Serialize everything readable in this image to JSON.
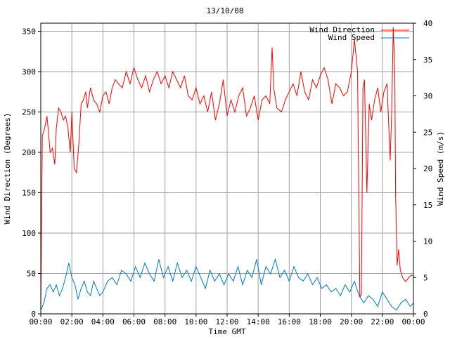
{
  "chart_data": {
    "type": "line",
    "title": "13/10/08",
    "xlabel": "Time GMT",
    "ylabel_left": "Wind Direction (Degrees)",
    "ylabel_right": "Wind Speed (m/s)",
    "grid": true,
    "legend_position": "top-right",
    "x_ticks": [
      "00:00",
      "02:00",
      "04:00",
      "06:00",
      "08:00",
      "10:00",
      "12:00",
      "14:00",
      "16:00",
      "18:00",
      "20:00",
      "22:00",
      "00:00"
    ],
    "x_range_hours": [
      0,
      24
    ],
    "y_left": {
      "range": [
        0,
        360
      ],
      "ticks": [
        0,
        50,
        100,
        150,
        200,
        250,
        300,
        350
      ]
    },
    "y_right": {
      "range": [
        0,
        40
      ],
      "ticks": [
        0,
        5,
        10,
        15,
        20,
        25,
        30,
        35,
        40
      ]
    },
    "series": [
      {
        "name": "Wind Direction",
        "axis": "left",
        "color": "#ff0000",
        "x_hours": [
          0,
          0.1,
          0.25,
          0.4,
          0.5,
          0.6,
          0.75,
          0.9,
          1.0,
          1.15,
          1.3,
          1.45,
          1.6,
          1.75,
          1.9,
          2.0,
          2.15,
          2.3,
          2.45,
          2.6,
          2.75,
          2.9,
          3.0,
          3.2,
          3.4,
          3.6,
          3.8,
          4.0,
          4.2,
          4.4,
          4.6,
          4.8,
          5.0,
          5.25,
          5.5,
          5.75,
          6.0,
          6.25,
          6.5,
          6.75,
          7.0,
          7.25,
          7.5,
          7.75,
          8.0,
          8.25,
          8.5,
          8.75,
          9.0,
          9.25,
          9.5,
          9.75,
          10.0,
          10.25,
          10.5,
          10.75,
          11.0,
          11.25,
          11.5,
          11.75,
          12.0,
          12.25,
          12.5,
          12.75,
          13.0,
          13.25,
          13.5,
          13.75,
          14.0,
          14.25,
          14.5,
          14.75,
          14.9,
          15.0,
          15.2,
          15.5,
          15.75,
          16.0,
          16.25,
          16.5,
          16.75,
          17.0,
          17.25,
          17.5,
          17.75,
          18.0,
          18.25,
          18.5,
          18.75,
          19.0,
          19.25,
          19.5,
          19.75,
          20.0,
          20.2,
          20.4,
          20.55,
          20.65,
          20.75,
          20.85,
          21.0,
          21.15,
          21.3,
          21.5,
          21.7,
          21.9,
          22.1,
          22.3,
          22.5,
          22.6,
          22.7,
          22.8,
          22.85,
          22.95,
          23.05,
          23.15,
          23.3,
          23.5,
          23.7,
          23.85,
          24.0
        ],
        "values": [
          2,
          220,
          230,
          245,
          225,
          200,
          205,
          185,
          230,
          255,
          250,
          240,
          245,
          230,
          200,
          250,
          180,
          175,
          210,
          260,
          265,
          275,
          255,
          280,
          265,
          260,
          250,
          270,
          275,
          260,
          280,
          290,
          285,
          280,
          300,
          285,
          305,
          290,
          280,
          295,
          275,
          290,
          300,
          285,
          295,
          280,
          300,
          290,
          280,
          295,
          270,
          265,
          280,
          260,
          270,
          250,
          275,
          240,
          260,
          290,
          245,
          265,
          250,
          270,
          280,
          245,
          255,
          270,
          240,
          265,
          270,
          260,
          330,
          280,
          255,
          250,
          265,
          275,
          285,
          270,
          300,
          275,
          265,
          290,
          280,
          295,
          305,
          290,
          260,
          285,
          280,
          270,
          275,
          300,
          340,
          300,
          20,
          25,
          280,
          290,
          150,
          260,
          240,
          265,
          280,
          250,
          275,
          285,
          190,
          250,
          355,
          300,
          150,
          60,
          80,
          55,
          45,
          40,
          45,
          48,
          47
        ]
      },
      {
        "name": "Wind Speed",
        "axis": "right",
        "color": "#0077cc",
        "x_hours": [
          0,
          0.2,
          0.4,
          0.6,
          0.8,
          1.0,
          1.2,
          1.4,
          1.6,
          1.8,
          2.0,
          2.2,
          2.4,
          2.6,
          2.8,
          3.0,
          3.2,
          3.4,
          3.6,
          3.8,
          4.0,
          4.3,
          4.6,
          4.9,
          5.2,
          5.5,
          5.8,
          6.1,
          6.4,
          6.7,
          7.0,
          7.3,
          7.6,
          7.9,
          8.2,
          8.5,
          8.8,
          9.1,
          9.4,
          9.7,
          10.0,
          10.3,
          10.6,
          10.9,
          11.2,
          11.5,
          11.8,
          12.1,
          12.4,
          12.7,
          13.0,
          13.3,
          13.6,
          13.9,
          14.2,
          14.5,
          14.8,
          15.1,
          15.4,
          15.7,
          16.0,
          16.3,
          16.6,
          16.9,
          17.2,
          17.5,
          17.8,
          18.1,
          18.4,
          18.7,
          19.0,
          19.3,
          19.6,
          19.9,
          20.2,
          20.5,
          20.8,
          21.1,
          21.4,
          21.7,
          22.0,
          22.3,
          22.6,
          22.9,
          23.2,
          23.5,
          23.8,
          24.0
        ],
        "values": [
          0.5,
          1.5,
          3.5,
          4,
          3,
          4,
          2.5,
          3.5,
          5,
          7,
          5,
          4,
          2,
          3.5,
          4.5,
          3,
          2.5,
          4.5,
          3.5,
          2.5,
          3,
          4.5,
          5,
          4,
          6,
          5.5,
          4.5,
          6.5,
          5,
          7,
          5.5,
          4.5,
          7.5,
          5,
          6.5,
          4.5,
          7,
          5,
          6,
          4.5,
          6.5,
          5,
          3.5,
          6,
          4.5,
          5.5,
          4,
          5.5,
          4.5,
          6.5,
          4,
          6,
          5,
          7.5,
          4,
          6.5,
          5.5,
          7.5,
          5,
          6,
          4.5,
          6.5,
          5,
          4.5,
          5.5,
          4,
          5,
          3.5,
          4,
          3,
          3.5,
          2.5,
          4,
          3,
          4.5,
          2.5,
          1.5,
          2.5,
          2,
          1,
          3,
          2,
          1,
          0.5,
          1.5,
          2,
          1,
          1.5
        ]
      }
    ]
  },
  "legend": {
    "items": [
      {
        "label": "Wind Direction",
        "color": "#ff0000"
      },
      {
        "label": "Wind Speed",
        "color": "#0077cc"
      }
    ]
  }
}
